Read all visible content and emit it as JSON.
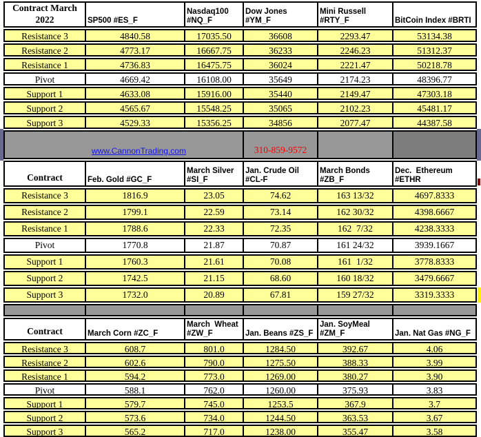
{
  "banner": {
    "link_text": "www.CannonTrading.com",
    "phone": "310-859-9572"
  },
  "colors": {
    "row_yellow": "#FFFF99",
    "pivot_white": "#FFFFFF",
    "band_gray_light": "#989898",
    "band_gray_dark": "#7D7D7D",
    "edge_purple": "#69698F",
    "link_blue": "#1414EE",
    "phone_red": "#FF0000",
    "border_black": "#000000"
  },
  "row_labels": [
    "Resistance 3",
    "Resistance 2",
    "Resistance 1",
    "Pivot",
    "Support 1",
    "Support 2",
    "Support 3"
  ],
  "sections": [
    {
      "title": "Contract March\n2022",
      "columns": [
        {
          "header": "SP500 #ES_F",
          "values": [
            "4840.58",
            "4773.17",
            "4736.83",
            "4669.42",
            "4633.08",
            "4565.67",
            "4529.33"
          ]
        },
        {
          "header": "Nasdaq100\n#NQ_F",
          "values": [
            "17035.50",
            "16667.75",
            "16475.75",
            "16108.00",
            "15916.00",
            "15548.25",
            "15356.25"
          ]
        },
        {
          "header": "Dow Jones\n#YM_F",
          "values": [
            "36608",
            "36233",
            "36024",
            "35649",
            "35440",
            "35065",
            "34856"
          ]
        },
        {
          "header": "Mini Russell\n#RTY_F",
          "values": [
            "2293.47",
            "2246.23",
            "2221.47",
            "2174.23",
            "2149.47",
            "2102.23",
            "2077.47"
          ]
        },
        {
          "header": "BitCoin Index #BRTI",
          "values": [
            "53134.38",
            "51312.37",
            "50218.78",
            "48396.77",
            "47303.18",
            "45481.17",
            "44387.58"
          ]
        }
      ]
    },
    {
      "title": "Contract",
      "columns": [
        {
          "header": "Feb. Gold #GC_F",
          "values": [
            "1816.9",
            "1799.1",
            "1788.6",
            "1770.8",
            "1760.3",
            "1742.5",
            "1732.0"
          ]
        },
        {
          "header": "March Silver\n#SI_F",
          "values": [
            "23.05",
            "22.59",
            "22.33",
            "21.87",
            "21.61",
            "21.15",
            "20.89"
          ]
        },
        {
          "header": "Jan. Crude Oil\n#CL-F",
          "values": [
            "74.62",
            "73.14",
            "72.35",
            "70.87",
            "70.08",
            "68.60",
            "67.81"
          ]
        },
        {
          "header": "March Bonds\n#ZB_F",
          "values": [
            "163 13/32",
            "162 30/32",
            "162  7/32",
            "161 24/32",
            "161  1/32",
            "160 18/32",
            "159 27/32"
          ]
        },
        {
          "header": "Dec.  Ethereum\n#ETHR",
          "values": [
            "4697.8333",
            "4398.6667",
            "4238.3333",
            "3939.1667",
            "3778.8333",
            "3479.6667",
            "3319.3333"
          ]
        }
      ]
    },
    {
      "title": "Contract",
      "columns": [
        {
          "header": "March Corn #ZC_F",
          "values": [
            "608.7",
            "602.6",
            "594.2",
            "588.1",
            "579.7",
            "573.6",
            "565.2"
          ]
        },
        {
          "header": "March  Wheat\n#ZW_F",
          "values": [
            "801.0",
            "790.0",
            "773.0",
            "762.0",
            "745.0",
            "734.0",
            "717.0"
          ]
        },
        {
          "header": "Jan. Beans #ZS_F",
          "values": [
            "1284.50",
            "1275.50",
            "1269.00",
            "1260.00",
            "1253.5",
            "1244.50",
            "1238.00"
          ]
        },
        {
          "header": "Jan. SoyMeal\n#ZM_F",
          "values": [
            "392.67",
            "388.33",
            "380.27",
            "375.93",
            "367.9",
            "363.53",
            "355.47"
          ]
        },
        {
          "header": "Jan. Nat Gas #NG_F",
          "values": [
            "4.06",
            "3.99",
            "3.90",
            "3.83",
            "3.7",
            "3.67",
            "3.58"
          ]
        }
      ]
    }
  ]
}
